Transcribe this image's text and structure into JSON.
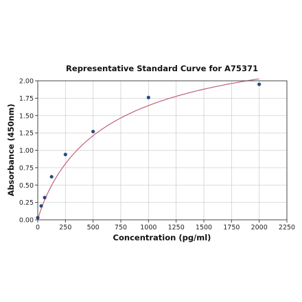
{
  "chart_data": {
    "type": "scatter",
    "title": "Representative Standard Curve for A75371",
    "xlabel": "Concentration (pg/ml)",
    "ylabel": "Absorbance (450nm)",
    "xlim": [
      0,
      2250
    ],
    "ylim": [
      0,
      2.0
    ],
    "xticks": [
      0,
      250,
      500,
      750,
      1000,
      1250,
      1500,
      1750,
      2000,
      2250
    ],
    "yticks": [
      0.0,
      0.25,
      0.5,
      0.75,
      1.0,
      1.25,
      1.5,
      1.75,
      2.0
    ],
    "ytick_labels": [
      "0.00",
      "0.25",
      "0.50",
      "0.75",
      "1.00",
      "1.25",
      "1.50",
      "1.75",
      "2.00"
    ],
    "grid": true,
    "fit": "four-parameter curve",
    "colors": {
      "points": "#2a4a7a",
      "curve": "#c0607a"
    },
    "x": [
      0,
      31.25,
      62.5,
      125,
      250,
      500,
      1000,
      2000
    ],
    "y": [
      0.03,
      0.2,
      0.32,
      0.62,
      0.94,
      1.27,
      1.76,
      1.95
    ]
  }
}
